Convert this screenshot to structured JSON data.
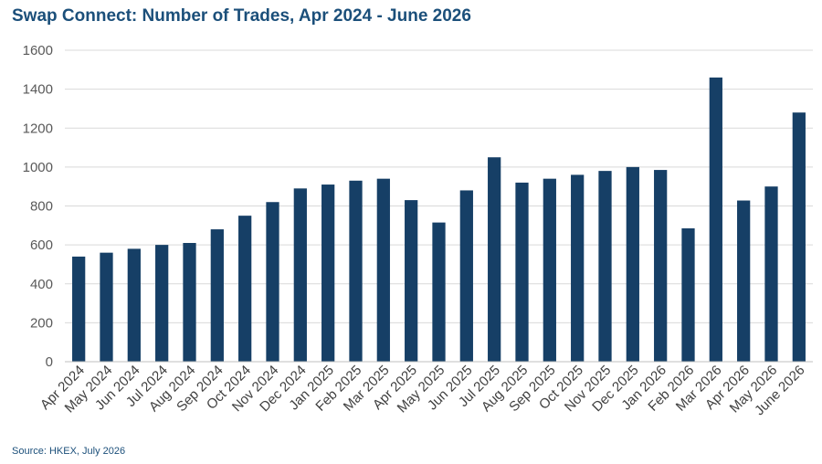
{
  "title": "Swap Connect: Number of Trades, Apr 2024 - June 2026",
  "source": "Source: HKEX, July 2026",
  "colors": {
    "bar": "#163f66",
    "grid": "#d9d9d9",
    "title": "#1b4f7a"
  },
  "chart_data": {
    "type": "bar",
    "title": "Swap Connect: Number of Trades, Apr 2024 - June 2026",
    "xlabel": "",
    "ylabel": "",
    "ylim": [
      0,
      1600
    ],
    "yticks": [
      0,
      200,
      400,
      600,
      800,
      1000,
      1200,
      1400,
      1600
    ],
    "grid": true,
    "legend": "none",
    "categories": [
      "Apr 2024",
      "May 2024",
      "Jun 2024",
      "Jul 2024",
      "Aug 2024",
      "Sep 2024",
      "Oct 2024",
      "Nov 2024",
      "Dec 2024",
      "Jan 2025",
      "Feb 2025",
      "Mar 2025",
      "Apr 2025",
      "May 2025",
      "Jun 2025",
      "Jul 2025",
      "Aug 2025",
      "Sep 2025",
      "Oct 2025",
      "Nov 2025",
      "Dec 2025",
      "Jan 2026",
      "Feb 2026",
      "Mar 2026",
      "Apr 2026",
      "May 2026",
      "June 2026"
    ],
    "values": [
      540,
      560,
      580,
      600,
      610,
      680,
      750,
      820,
      890,
      910,
      930,
      940,
      830,
      715,
      880,
      1050,
      920,
      940,
      960,
      980,
      1000,
      985,
      685,
      1460,
      828,
      900,
      1280
    ]
  }
}
